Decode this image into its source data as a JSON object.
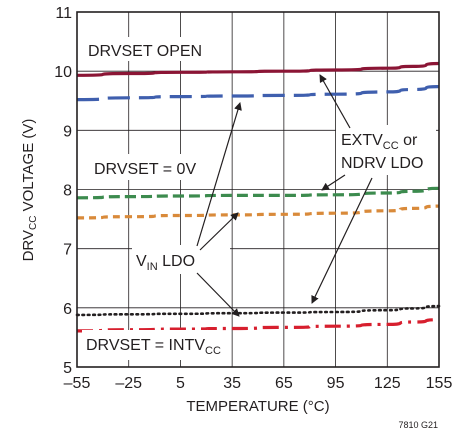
{
  "chart_data": {
    "type": "line",
    "xlabel": "TEMPERATURE (°C)",
    "ylabel": {
      "main": "DRV",
      "sub": "CC",
      "rest": " VOLTAGE (V)"
    },
    "xlim": [
      -55,
      155
    ],
    "ylim": [
      5,
      11
    ],
    "x_ticks": [
      -55,
      -25,
      5,
      35,
      65,
      95,
      125,
      155
    ],
    "x_tick_labels": [
      "–55",
      "–25",
      "5",
      "35",
      "65",
      "95",
      "125",
      "155"
    ],
    "y_ticks": [
      5,
      6,
      7,
      8,
      9,
      10,
      11
    ],
    "y_tick_labels": [
      "5",
      "6",
      "7",
      "8",
      "9",
      "10",
      "11"
    ],
    "grid": true,
    "series": [
      {
        "x": [
          -55,
          -25,
          5,
          35,
          65,
          95,
          125,
          140,
          155
        ],
        "y": [
          9.93,
          9.96,
          9.98,
          9.99,
          10.0,
          10.02,
          10.05,
          10.08,
          10.13
        ],
        "color": "#8b1535",
        "dash": "solid"
      },
      {
        "x": [
          -55,
          -25,
          5,
          35,
          65,
          95,
          125,
          140,
          155
        ],
        "y": [
          9.52,
          9.55,
          9.57,
          9.58,
          9.59,
          9.61,
          9.65,
          9.69,
          9.74
        ],
        "color": "#3f5fae",
        "dash": "long-dash"
      },
      {
        "x": [
          -55,
          -25,
          5,
          35,
          65,
          95,
          125,
          140,
          155
        ],
        "y": [
          7.86,
          7.88,
          7.89,
          7.9,
          7.9,
          7.91,
          7.94,
          7.97,
          8.02
        ],
        "color": "#3c8b4e",
        "dash": "dash"
      },
      {
        "x": [
          -55,
          -25,
          5,
          35,
          65,
          95,
          125,
          140,
          155
        ],
        "y": [
          7.52,
          7.54,
          7.56,
          7.57,
          7.58,
          7.6,
          7.64,
          7.68,
          7.72
        ],
        "color": "#d98a3a",
        "dash": "short-dash"
      },
      {
        "x": [
          -55,
          -25,
          5,
          35,
          65,
          95,
          125,
          140,
          155
        ],
        "y": [
          5.88,
          5.89,
          5.9,
          5.91,
          5.92,
          5.93,
          5.96,
          5.99,
          6.03
        ],
        "color": "#231f20",
        "dash": "dot"
      },
      {
        "x": [
          -55,
          -25,
          5,
          35,
          65,
          95,
          125,
          140,
          155
        ],
        "y": [
          5.61,
          5.63,
          5.64,
          5.65,
          5.67,
          5.69,
          5.72,
          5.76,
          5.8
        ],
        "color": "#d71f2e",
        "dash": "dash-dot"
      }
    ],
    "annotations": [
      {
        "text": "DRVSET OPEN"
      },
      {
        "text": "DRVSET = 0V"
      },
      {
        "main": "DRVSET = INTV",
        "sub": "CC"
      },
      {
        "main": "V",
        "sub": "IN",
        "rest": " LDO"
      },
      {
        "main": "EXTV",
        "sub": "CC",
        "rest": " or"
      },
      {
        "text": "NDRV LDO"
      }
    ],
    "figure_id": "7810 G21"
  }
}
